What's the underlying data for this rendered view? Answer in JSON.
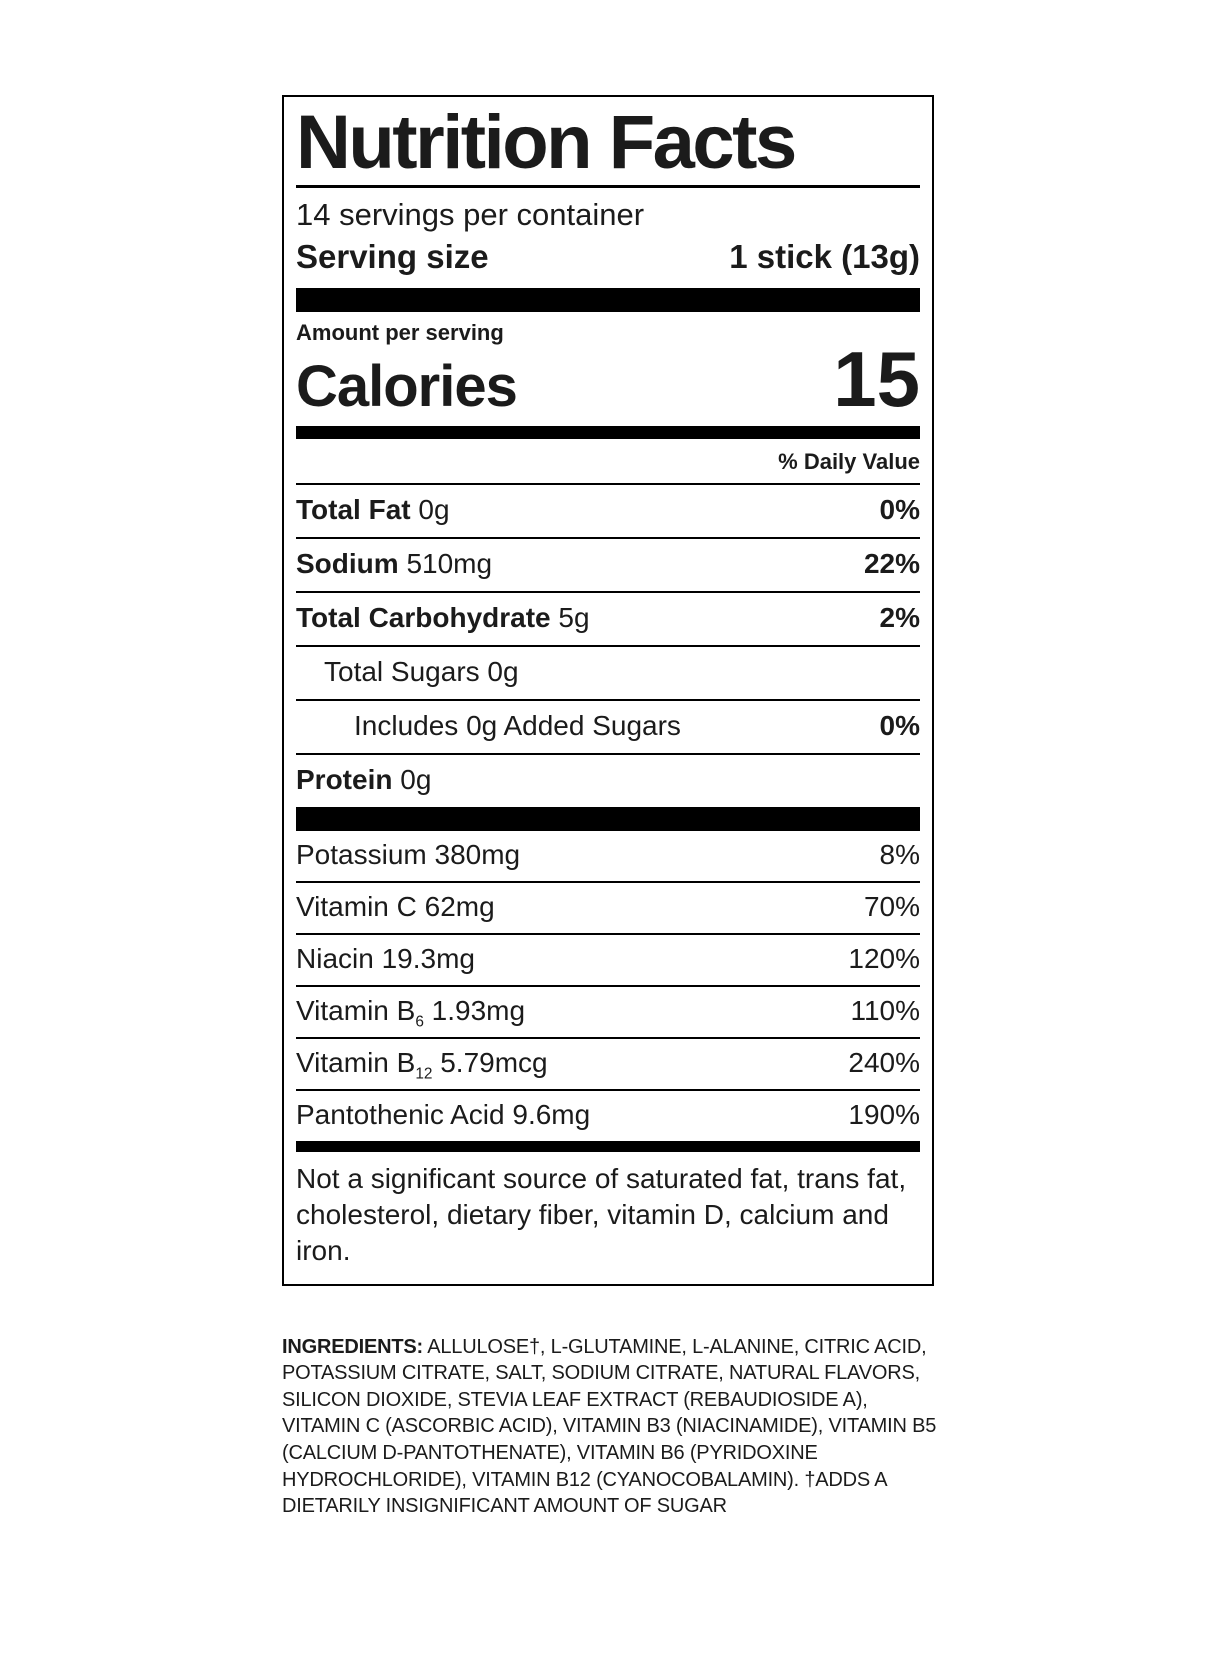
{
  "label": {
    "title": "Nutrition Facts",
    "servings_per_container": "14 servings per container",
    "serving_size_label": "Serving size",
    "serving_size_value": "1 stick (13g)",
    "amount_per_serving": "Amount per serving",
    "calories_label": "Calories",
    "calories_value": "15",
    "daily_value_header": "% Daily Value",
    "main_rows": [
      {
        "name": "Total Fat",
        "bold": true,
        "amount": "0g",
        "dv": "0%",
        "indent": 0
      },
      {
        "name": "Sodium",
        "bold": true,
        "amount": "510mg",
        "dv": "22%",
        "indent": 0
      },
      {
        "name": "Total Carbohydrate",
        "bold": true,
        "amount": "5g",
        "dv": "2%",
        "indent": 0
      },
      {
        "name": "Total Sugars",
        "bold": false,
        "amount": "0g",
        "dv": "",
        "indent": 1
      },
      {
        "name": "Includes 0g Added Sugars",
        "bold": false,
        "amount": "",
        "dv": "0%",
        "indent": 2
      },
      {
        "name": "Protein",
        "bold": true,
        "amount": "0g",
        "dv": "",
        "indent": 0
      }
    ],
    "vitamin_rows": [
      {
        "name": "Potassium",
        "amount": "380mg",
        "dv": "8%"
      },
      {
        "name": "Vitamin C",
        "amount": "62mg",
        "dv": "70%"
      },
      {
        "name": "Niacin",
        "amount": "19.3mg",
        "dv": "120%"
      },
      {
        "name": "Vitamin B",
        "sub": "6",
        "amount": "1.93mg",
        "dv": "110%"
      },
      {
        "name": "Vitamin B",
        "sub": "12",
        "amount": "5.79mcg",
        "dv": "240%"
      },
      {
        "name": "Pantothenic Acid",
        "amount": "9.6mg",
        "dv": "190%"
      }
    ],
    "footnote": "Not a significant source of saturated fat, trans fat, cholesterol, dietary fiber, vitamin D, calcium and iron."
  },
  "ingredients": {
    "heading": "INGREDIENTS:",
    "text": "ALLULOSE†, L-GLUTAMINE, L-ALANINE, CITRIC ACID, POTASSIUM CITRATE, SALT, SODIUM CITRATE, NATURAL FLAVORS, SILICON DIOXIDE, STEVIA LEAF EXTRACT (REBAUDIOSIDE A), VITAMIN C (ASCORBIC ACID), VITAMIN B3 (NIACINAMIDE), VITAMIN B5 (CALCIUM D-PANTOTHENATE), VITAMIN B6 (PYRIDOXINE HYDROCHLORIDE), VITAMIN B12 (CYANOCOBALAMIN). †ADDS A DIETARILY INSIGNIFICANT AMOUNT OF SUGAR"
  },
  "colors": {
    "text": "#1b1b1b",
    "bars_and_rules": "#000000",
    "background": "#ffffff"
  }
}
